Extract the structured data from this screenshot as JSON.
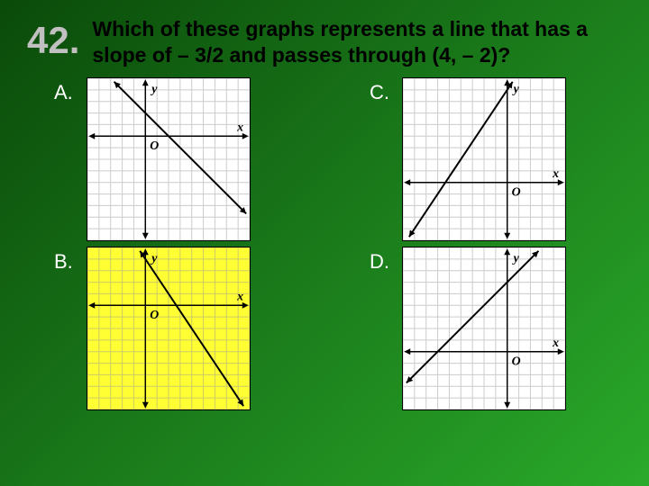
{
  "question": {
    "number": "42.",
    "text": "Which of these graphs represents a line that has a slope of – 3/2 and passes through (4, – 2)?"
  },
  "options": [
    {
      "label": "A."
    },
    {
      "label": "B."
    },
    {
      "label": "C."
    },
    {
      "label": "D."
    }
  ],
  "graphs": {
    "A": {
      "bg": "#ffffff",
      "grid_color": "#cccccc",
      "axis_color": "#000000",
      "line_color": "#000000",
      "xlim": [
        -5,
        9
      ],
      "ylim": [
        -9,
        5
      ],
      "size": 182,
      "origin_shift": [
        -2,
        2
      ],
      "slope": -1.0,
      "y_at_center": 0,
      "line_w": 2,
      "xlabel": "x",
      "ylabel": "y",
      "origin_label": "O",
      "tick_step": 1
    },
    "B": {
      "bg": "#ffff33",
      "grid_color": "#cccc66",
      "axis_color": "#000000",
      "line_color": "#000000",
      "xlim": [
        -5,
        9
      ],
      "ylim": [
        -9,
        5
      ],
      "size": 182,
      "origin_shift": [
        -2,
        2
      ],
      "slope": -1.5,
      "y_at_center": 0,
      "line_w": 2,
      "xlabel": "x",
      "ylabel": "y",
      "origin_label": "O",
      "tick_step": 1
    },
    "C": {
      "bg": "#ffffff",
      "grid_color": "#cccccc",
      "axis_color": "#000000",
      "line_color": "#000000",
      "xlim": [
        -9,
        5
      ],
      "ylim": [
        -5,
        9
      ],
      "size": 182,
      "origin_shift": [
        2,
        -2
      ],
      "slope": 1.5,
      "y_at_center": 0,
      "line_w": 2,
      "xlabel": "x",
      "ylabel": "y",
      "origin_label": "O",
      "tick_step": 1
    },
    "D": {
      "bg": "#ffffff",
      "grid_color": "#cccccc",
      "axis_color": "#000000",
      "line_color": "#000000",
      "xlim": [
        -9,
        5
      ],
      "ylim": [
        -5,
        9
      ],
      "size": 182,
      "origin_shift": [
        2,
        -2
      ],
      "slope": 1.0,
      "y_at_center": 0,
      "line_w": 2,
      "xlabel": "x",
      "ylabel": "y",
      "origin_label": "O",
      "tick_step": 1
    }
  }
}
